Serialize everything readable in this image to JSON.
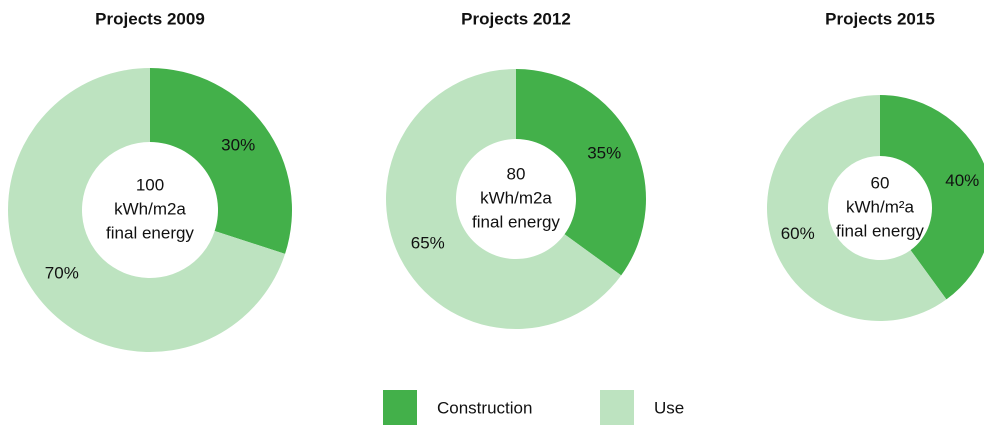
{
  "chart_data": [
    {
      "type": "pie",
      "title": "Projects 2009",
      "categories": [
        "Construction",
        "Use"
      ],
      "values": [
        30,
        70
      ],
      "value_labels": [
        "30%",
        "70%"
      ],
      "colors": [
        "#43b04a",
        "#bde3c0"
      ],
      "center_value": 100,
      "center_unit": "kWh/m2a",
      "center_note": "final energy",
      "donut": true
    },
    {
      "type": "pie",
      "title": "Projects 2012",
      "categories": [
        "Construction",
        "Use"
      ],
      "values": [
        35,
        65
      ],
      "value_labels": [
        "35%",
        "65%"
      ],
      "colors": [
        "#43b04a",
        "#bde3c0"
      ],
      "center_value": 80,
      "center_unit": "kWh/m2a",
      "center_note": "final energy",
      "donut": true
    },
    {
      "type": "pie",
      "title": "Projects 2015",
      "categories": [
        "Construction",
        "Use"
      ],
      "values": [
        40,
        60
      ],
      "value_labels": [
        "40%",
        "60%"
      ],
      "colors": [
        "#43b04a",
        "#bde3c0"
      ],
      "center_value": 60,
      "center_unit": "kWh/m²a",
      "center_note": "final energy",
      "donut": true
    }
  ]
}
